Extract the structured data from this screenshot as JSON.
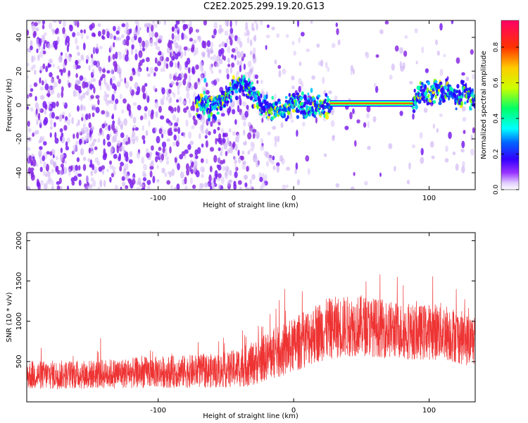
{
  "title": "C2E2.2025.299.19.20.G13",
  "chart_data": [
    {
      "type": "heatmap",
      "name": "spectrogram",
      "xlabel": "Height of straight line (km)",
      "ylabel": "Frequency (Hz)",
      "xlim": [
        -197,
        134
      ],
      "ylim": [
        -50,
        50
      ],
      "xticks": [
        -100,
        0,
        100
      ],
      "xtick_labels": [
        "-100",
        "0",
        "100"
      ],
      "yticks": [
        -40,
        -20,
        0,
        20,
        40
      ],
      "ytick_labels": [
        "-40",
        "-20",
        "0",
        "20",
        "40"
      ],
      "colorbar": {
        "label": "Normalized spectral amplitude",
        "range": [
          0,
          0.95
        ],
        "ticks": [
          0.0,
          0.2,
          0.4,
          0.6,
          0.8
        ],
        "tick_labels": [
          "0.0",
          "0.2",
          "0.4",
          "0.6",
          "0.8"
        ]
      },
      "tone_track": {
        "description_points_x": [
          -72,
          -60,
          -50,
          -45,
          -38,
          -30,
          -20,
          -10,
          0,
          10,
          20,
          25,
          28,
          60,
          80,
          88,
          95,
          100,
          105,
          110,
          115,
          120,
          125,
          130,
          134
        ],
        "description_points_y": [
          2,
          0,
          4,
          10,
          12,
          6,
          -2,
          -3,
          1,
          -1,
          0,
          -2,
          1,
          1,
          1,
          0,
          8,
          5,
          10,
          6,
          9,
          3,
          8,
          4,
          2
        ]
      }
    },
    {
      "type": "line",
      "name": "snr",
      "xlabel": "Height of straight line (km)",
      "ylabel": "SNR (10 * v/v)",
      "xlim": [
        -197,
        134
      ],
      "ylim": [
        0,
        2100
      ],
      "xticks": [
        -100,
        0,
        100
      ],
      "xtick_labels": [
        "-100",
        "0",
        "100"
      ],
      "yticks": [
        500,
        1000,
        1500,
        2000
      ],
      "ytick_labels": [
        "500",
        "1000",
        "1500",
        "2000"
      ],
      "color": "#ee3333",
      "envelope": {
        "x": [
          -197,
          -150,
          -100,
          -70,
          -50,
          -40,
          -30,
          -20,
          -10,
          0,
          10,
          20,
          30,
          50,
          70,
          90,
          110,
          120,
          130,
          134
        ],
        "mean": [
          330,
          340,
          370,
          380,
          390,
          430,
          470,
          560,
          620,
          700,
          800,
          880,
          920,
          950,
          900,
          860,
          880,
          820,
          760,
          780
        ],
        "spread": [
          200,
          200,
          220,
          230,
          240,
          280,
          300,
          330,
          360,
          380,
          400,
          420,
          430,
          420,
          400,
          380,
          400,
          380,
          360,
          360
        ]
      }
    }
  ]
}
